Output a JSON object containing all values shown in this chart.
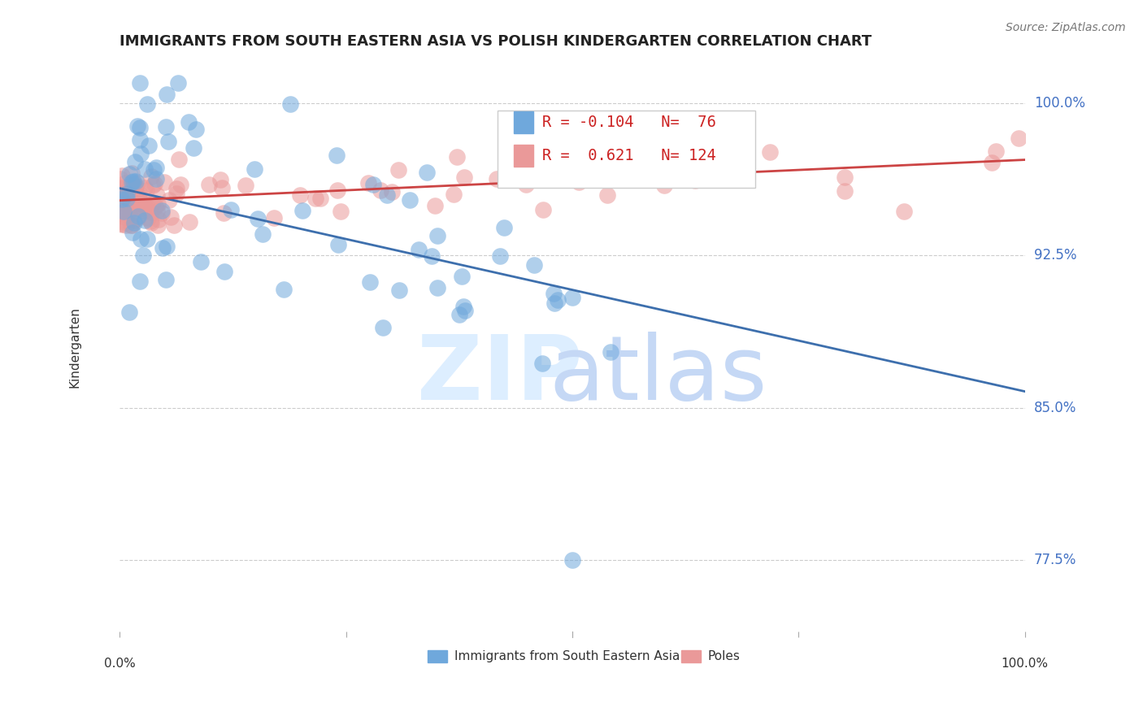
{
  "title": "IMMIGRANTS FROM SOUTH EASTERN ASIA VS POLISH KINDERGARTEN CORRELATION CHART",
  "source": "Source: ZipAtlas.com",
  "ylabel": "Kindergarten",
  "yticks": [
    0.775,
    0.85,
    0.925,
    1.0
  ],
  "ytick_labels": [
    "77.5%",
    "85.0%",
    "92.5%",
    "100.0%"
  ],
  "xmin": 0.0,
  "xmax": 1.0,
  "ymin": 0.74,
  "ymax": 1.02,
  "blue_R": -0.104,
  "blue_N": 76,
  "pink_R": 0.621,
  "pink_N": 124,
  "blue_color": "#6fa8dc",
  "pink_color": "#ea9999",
  "blue_line_color": "#3d6fad",
  "pink_line_color": "#cc4444",
  "legend_label_blue": "Immigrants from South Eastern Asia",
  "legend_label_pink": "Poles",
  "blue_trend_y0": 0.958,
  "blue_trend_y1": 0.858,
  "pink_trend_y0": 0.952,
  "pink_trend_y1": 0.972
}
